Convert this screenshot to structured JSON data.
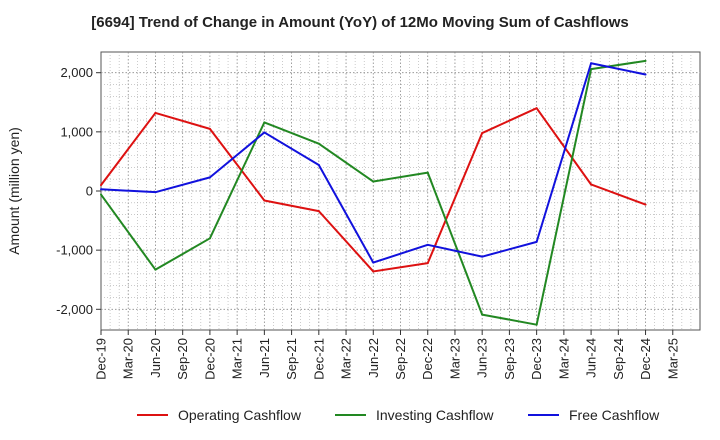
{
  "chart_data": {
    "type": "line",
    "title": "[6694]  Trend of Change in Amount (YoY) of 12Mo Moving Sum of Cashflows",
    "xlabel": "",
    "ylabel": "Amount (million yen)",
    "ylim": [
      -2350,
      2350
    ],
    "yticks": [
      2000,
      1000,
      0,
      -1000,
      -2000
    ],
    "ytick_labels": [
      "2,000",
      "1,000",
      "0",
      "-1,000",
      "-2,000"
    ],
    "categories": [
      "Dec-19",
      "Mar-20",
      "Jun-20",
      "Sep-20",
      "Dec-20",
      "Mar-21",
      "Jun-21",
      "Sep-21",
      "Dec-21",
      "Mar-22",
      "Jun-22",
      "Sep-22",
      "Dec-22",
      "Mar-23",
      "Jun-23",
      "Sep-23",
      "Dec-23",
      "Mar-24",
      "Jun-24",
      "Sep-24",
      "Dec-24",
      "Mar-25"
    ],
    "grid": true,
    "legend_position": "bottom",
    "series": [
      {
        "name": "Operating Cashflow",
        "color": "#dd1111",
        "points": [
          [
            "Dec-19",
            100
          ],
          [
            "Jun-20",
            1320
          ],
          [
            "Dec-20",
            1050
          ],
          [
            "Jun-21",
            -160
          ],
          [
            "Dec-21",
            -340
          ],
          [
            "Jun-22",
            -1360
          ],
          [
            "Dec-22",
            -1220
          ],
          [
            "Jun-23",
            980
          ],
          [
            "Dec-23",
            1400
          ],
          [
            "Jun-24",
            110
          ],
          [
            "Dec-24",
            -230
          ]
        ]
      },
      {
        "name": "Investing Cashflow",
        "color": "#228822",
        "points": [
          [
            "Dec-19",
            -60
          ],
          [
            "Jun-20",
            -1330
          ],
          [
            "Dec-20",
            -800
          ],
          [
            "Jun-21",
            1160
          ],
          [
            "Dec-21",
            800
          ],
          [
            "Jun-22",
            160
          ],
          [
            "Dec-22",
            310
          ],
          [
            "Jun-23",
            -2090
          ],
          [
            "Dec-23",
            -2260
          ],
          [
            "Jun-24",
            2060
          ],
          [
            "Dec-24",
            2200
          ]
        ]
      },
      {
        "name": "Free Cashflow",
        "color": "#1111dd",
        "points": [
          [
            "Dec-19",
            30
          ],
          [
            "Jun-20",
            -20
          ],
          [
            "Dec-20",
            230
          ],
          [
            "Jun-21",
            990
          ],
          [
            "Dec-21",
            440
          ],
          [
            "Jun-22",
            -1210
          ],
          [
            "Dec-22",
            -910
          ],
          [
            "Jun-23",
            -1110
          ],
          [
            "Dec-23",
            -860
          ],
          [
            "Jun-24",
            2160
          ],
          [
            "Dec-24",
            1970
          ]
        ]
      }
    ]
  }
}
